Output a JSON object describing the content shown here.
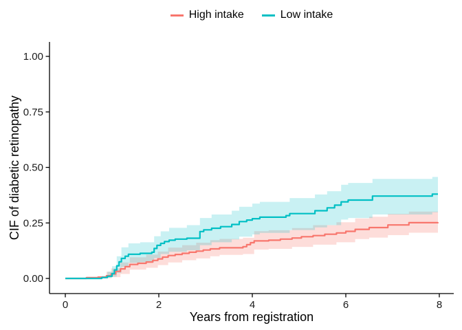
{
  "chart_data": {
    "type": "line",
    "style": "step-cif-curves-with-confidence-bands",
    "title": "",
    "xlabel": "Years from registration",
    "ylabel": "CIF of diabetic retinopathy",
    "xlim": [
      0,
      8
    ],
    "ylim": [
      0,
      1
    ],
    "grid": false,
    "legend_position": "top-center",
    "x_ticks": [
      {
        "v": 0,
        "label": "0"
      },
      {
        "v": 2,
        "label": "2"
      },
      {
        "v": 4,
        "label": "4"
      },
      {
        "v": 6,
        "label": "6"
      },
      {
        "v": 8,
        "label": "8"
      }
    ],
    "y_ticks": [
      {
        "v": 0.0,
        "label": "0.00"
      },
      {
        "v": 0.25,
        "label": "0.25"
      },
      {
        "v": 0.5,
        "label": "0.50"
      },
      {
        "v": 0.75,
        "label": "0.75"
      },
      {
        "v": 1.0,
        "label": "1.00"
      }
    ],
    "series": [
      {
        "name": "High intake",
        "color": "#F8766D",
        "band_color": "rgba(248,118,109,0.25)",
        "steps": [
          [
            0,
            0
          ],
          [
            0.45,
            0.003
          ],
          [
            0.7,
            0.006
          ],
          [
            0.88,
            0.012
          ],
          [
            0.98,
            0.02
          ],
          [
            1.08,
            0.032
          ],
          [
            1.18,
            0.043
          ],
          [
            1.28,
            0.053
          ],
          [
            1.38,
            0.063
          ],
          [
            1.55,
            0.068
          ],
          [
            1.73,
            0.074
          ],
          [
            1.87,
            0.081
          ],
          [
            1.98,
            0.088
          ],
          [
            2.08,
            0.096
          ],
          [
            2.2,
            0.103
          ],
          [
            2.35,
            0.108
          ],
          [
            2.5,
            0.113
          ],
          [
            2.65,
            0.118
          ],
          [
            2.8,
            0.123
          ],
          [
            2.95,
            0.128
          ],
          [
            3.1,
            0.133
          ],
          [
            3.3,
            0.138
          ],
          [
            3.8,
            0.143
          ],
          [
            3.88,
            0.152
          ],
          [
            3.96,
            0.161
          ],
          [
            4.04,
            0.169
          ],
          [
            4.35,
            0.172
          ],
          [
            4.6,
            0.177
          ],
          [
            4.85,
            0.182
          ],
          [
            5.05,
            0.188
          ],
          [
            5.3,
            0.193
          ],
          [
            5.55,
            0.199
          ],
          [
            5.8,
            0.205
          ],
          [
            6.0,
            0.212
          ],
          [
            6.2,
            0.221
          ],
          [
            6.5,
            0.229
          ],
          [
            6.9,
            0.241
          ],
          [
            7.35,
            0.251
          ],
          [
            7.97,
            0.253
          ]
        ],
        "band": [
          [
            0.45,
            0,
            0.008
          ],
          [
            0.88,
            0.002,
            0.03
          ],
          [
            0.98,
            0.006,
            0.045
          ],
          [
            1.18,
            0.02,
            0.072
          ],
          [
            1.38,
            0.04,
            0.095
          ],
          [
            1.73,
            0.048,
            0.107
          ],
          [
            1.98,
            0.06,
            0.121
          ],
          [
            2.2,
            0.072,
            0.139
          ],
          [
            2.5,
            0.082,
            0.15
          ],
          [
            2.8,
            0.09,
            0.161
          ],
          [
            3.1,
            0.1,
            0.172
          ],
          [
            3.3,
            0.106,
            0.178
          ],
          [
            3.8,
            0.11,
            0.183
          ],
          [
            4.04,
            0.13,
            0.213
          ],
          [
            4.35,
            0.133,
            0.217
          ],
          [
            4.85,
            0.142,
            0.227
          ],
          [
            5.3,
            0.152,
            0.24
          ],
          [
            5.8,
            0.163,
            0.253
          ],
          [
            6.2,
            0.177,
            0.27
          ],
          [
            6.5,
            0.184,
            0.278
          ],
          [
            6.9,
            0.195,
            0.291
          ],
          [
            7.35,
            0.206,
            0.301
          ],
          [
            7.97,
            0.208,
            0.302
          ]
        ]
      },
      {
        "name": "Low intake",
        "color": "#00BFC4",
        "band_color": "rgba(0,191,196,0.21)",
        "steps": [
          [
            0,
            0
          ],
          [
            0.78,
            0.004
          ],
          [
            0.9,
            0.01
          ],
          [
            1.0,
            0.022
          ],
          [
            1.05,
            0.038
          ],
          [
            1.1,
            0.057
          ],
          [
            1.15,
            0.075
          ],
          [
            1.2,
            0.09
          ],
          [
            1.28,
            0.1
          ],
          [
            1.35,
            0.109
          ],
          [
            1.6,
            0.113
          ],
          [
            1.85,
            0.118
          ],
          [
            1.9,
            0.135
          ],
          [
            1.96,
            0.149
          ],
          [
            2.04,
            0.158
          ],
          [
            2.12,
            0.166
          ],
          [
            2.22,
            0.172
          ],
          [
            2.35,
            0.177
          ],
          [
            2.6,
            0.181
          ],
          [
            2.88,
            0.211
          ],
          [
            2.96,
            0.219
          ],
          [
            3.13,
            0.226
          ],
          [
            3.32,
            0.233
          ],
          [
            3.56,
            0.243
          ],
          [
            3.72,
            0.256
          ],
          [
            3.88,
            0.263
          ],
          [
            4.0,
            0.269
          ],
          [
            4.16,
            0.276
          ],
          [
            4.72,
            0.283
          ],
          [
            4.8,
            0.292
          ],
          [
            5.34,
            0.305
          ],
          [
            5.6,
            0.318
          ],
          [
            5.76,
            0.33
          ],
          [
            5.9,
            0.345
          ],
          [
            6.05,
            0.353
          ],
          [
            6.57,
            0.371
          ],
          [
            7.85,
            0.38
          ],
          [
            7.97,
            0.38
          ]
        ],
        "band": [
          [
            0.78,
            0,
            0.012
          ],
          [
            0.9,
            0.002,
            0.03
          ],
          [
            1.0,
            0.008,
            0.055
          ],
          [
            1.1,
            0.025,
            0.1
          ],
          [
            1.2,
            0.052,
            0.14
          ],
          [
            1.35,
            0.07,
            0.158
          ],
          [
            1.6,
            0.073,
            0.163
          ],
          [
            1.9,
            0.092,
            0.19
          ],
          [
            2.04,
            0.11,
            0.212
          ],
          [
            2.22,
            0.12,
            0.228
          ],
          [
            2.6,
            0.127,
            0.24
          ],
          [
            2.88,
            0.15,
            0.272
          ],
          [
            3.13,
            0.163,
            0.288
          ],
          [
            3.56,
            0.176,
            0.305
          ],
          [
            3.72,
            0.188,
            0.323
          ],
          [
            4.0,
            0.198,
            0.337
          ],
          [
            4.16,
            0.205,
            0.345
          ],
          [
            4.8,
            0.218,
            0.362
          ],
          [
            5.34,
            0.23,
            0.378
          ],
          [
            5.6,
            0.24,
            0.393
          ],
          [
            5.9,
            0.265,
            0.422
          ],
          [
            6.05,
            0.272,
            0.43
          ],
          [
            6.57,
            0.288,
            0.448
          ],
          [
            7.85,
            0.298,
            0.457
          ],
          [
            7.97,
            0.298,
            0.457
          ]
        ]
      }
    ]
  },
  "axis_colors": {
    "axis_line": "#000000",
    "tick_label": "#1a1a1a"
  }
}
